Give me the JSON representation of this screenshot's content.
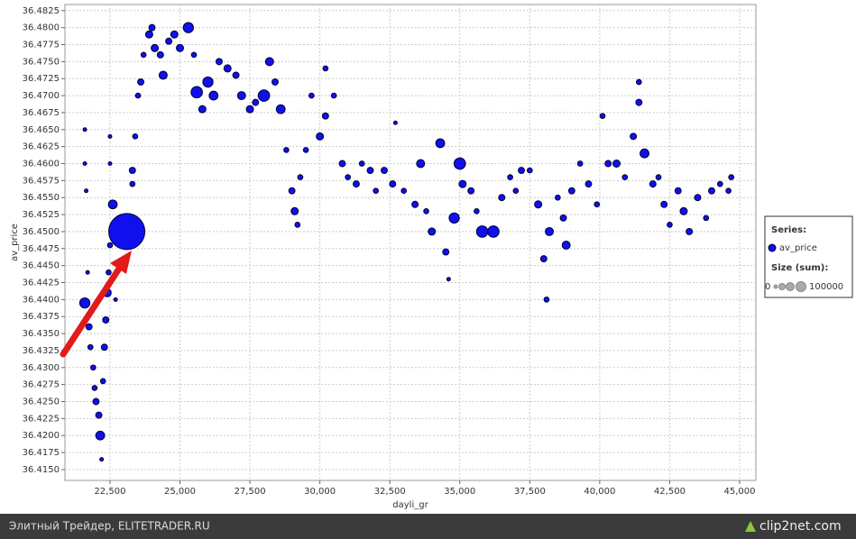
{
  "chart_data": {
    "type": "scatter",
    "x_label": "dayli_gr",
    "y_label": "av_price",
    "xlim": [
      20890,
      45580
    ],
    "ylim": [
      36.4134,
      36.4834
    ],
    "xticks": [
      {
        "value": 22500,
        "label": "22,500"
      },
      {
        "value": 25000,
        "label": "25,000"
      },
      {
        "value": 27500,
        "label": "27,500"
      },
      {
        "value": 30000,
        "label": "30,000"
      },
      {
        "value": 32500,
        "label": "32,500"
      },
      {
        "value": 35000,
        "label": "35,000"
      },
      {
        "value": 37500,
        "label": "37,500"
      },
      {
        "value": 40000,
        "label": "40,000"
      },
      {
        "value": 42500,
        "label": "42,500"
      },
      {
        "value": 45000,
        "label": "45,000"
      }
    ],
    "yticks": [
      {
        "value": 36.415,
        "label": "36.4150"
      },
      {
        "value": 36.4175,
        "label": "36.4175"
      },
      {
        "value": 36.42,
        "label": "36.4200"
      },
      {
        "value": 36.4225,
        "label": "36.4225"
      },
      {
        "value": 36.425,
        "label": "36.4250"
      },
      {
        "value": 36.4275,
        "label": "36.4275"
      },
      {
        "value": 36.43,
        "label": "36.4300"
      },
      {
        "value": 36.4325,
        "label": "36.4325"
      },
      {
        "value": 36.435,
        "label": "36.4350"
      },
      {
        "value": 36.4375,
        "label": "36.4375"
      },
      {
        "value": 36.44,
        "label": "36.4400"
      },
      {
        "value": 36.4425,
        "label": "36.4425"
      },
      {
        "value": 36.445,
        "label": "36.4450"
      },
      {
        "value": 36.4475,
        "label": "36.4475"
      },
      {
        "value": 36.45,
        "label": "36.4500"
      },
      {
        "value": 36.4525,
        "label": "36.4525"
      },
      {
        "value": 36.455,
        "label": "36.4550"
      },
      {
        "value": 36.4575,
        "label": "36.4575"
      },
      {
        "value": 36.46,
        "label": "36.4600"
      },
      {
        "value": 36.4625,
        "label": "36.4625"
      },
      {
        "value": 36.465,
        "label": "36.4650"
      },
      {
        "value": 36.4675,
        "label": "36.4675"
      },
      {
        "value": 36.47,
        "label": "36.4700"
      },
      {
        "value": 36.4725,
        "label": "36.4725"
      },
      {
        "value": 36.475,
        "label": "36.4750"
      },
      {
        "value": 36.4775,
        "label": "36.4775"
      },
      {
        "value": 36.48,
        "label": "36.4800"
      },
      {
        "value": 36.4825,
        "label": "36.4825"
      }
    ],
    "grid": true,
    "legend": {
      "title": "Series:",
      "size_title": "Size (sum):",
      "size_min": 0,
      "size_max": 100000
    },
    "series": [
      {
        "name": "av_price",
        "color": "#1010ee",
        "x": [
          21600,
          21600,
          21650,
          21700,
          21600,
          21750,
          21800,
          21900,
          21950,
          22000,
          22100,
          22150,
          22200,
          22250,
          22300,
          22350,
          22400,
          22450,
          22500,
          22600,
          22500,
          22500,
          22700,
          23100,
          23300,
          23300,
          23400,
          23500,
          23600,
          23700,
          23900,
          24000,
          24100,
          24300,
          24400,
          24600,
          24800,
          25000,
          25300,
          25500,
          25600,
          25800,
          26000,
          26200,
          26400,
          26700,
          27000,
          27200,
          27500,
          27700,
          28000,
          28200,
          28400,
          28600,
          28800,
          29000,
          29200,
          29100,
          29300,
          29500,
          29700,
          30000,
          30200,
          30200,
          30500,
          30800,
          31000,
          31300,
          31500,
          31800,
          32000,
          32300,
          32600,
          32700,
          33000,
          33400,
          33600,
          33800,
          34000,
          34300,
          34500,
          34600,
          34800,
          35000,
          35100,
          35400,
          35600,
          35800,
          36200,
          36500,
          36800,
          37000,
          37200,
          37500,
          37800,
          38000,
          38100,
          38200,
          38500,
          38700,
          38800,
          39000,
          39300,
          39600,
          39900,
          40100,
          40300,
          40600,
          40900,
          41200,
          41400,
          41400,
          41600,
          41900,
          42100,
          42300,
          42500,
          42800,
          43000,
          43200,
          43500,
          43800,
          44000,
          44300,
          44600,
          44700
        ],
        "values": [
          36.465,
          36.46,
          36.456,
          36.444,
          36.4395,
          36.436,
          36.433,
          36.43,
          36.427,
          36.425,
          36.423,
          36.42,
          36.4165,
          36.428,
          36.433,
          36.437,
          36.441,
          36.444,
          36.448,
          36.454,
          36.46,
          36.464,
          36.44,
          36.45,
          36.457,
          36.459,
          36.464,
          36.47,
          36.472,
          36.476,
          36.479,
          36.48,
          36.477,
          36.476,
          36.473,
          36.478,
          36.479,
          36.477,
          36.48,
          36.476,
          36.4705,
          36.468,
          36.472,
          36.47,
          36.475,
          36.474,
          36.473,
          36.47,
          36.468,
          36.469,
          36.47,
          36.475,
          36.472,
          36.468,
          36.462,
          36.456,
          36.451,
          36.453,
          36.458,
          36.462,
          36.47,
          36.464,
          36.474,
          36.467,
          36.47,
          36.46,
          36.458,
          36.457,
          36.46,
          36.459,
          36.456,
          36.459,
          36.457,
          36.466,
          36.456,
          36.454,
          36.46,
          36.453,
          36.45,
          36.463,
          36.447,
          36.443,
          36.452,
          36.46,
          36.457,
          36.456,
          36.453,
          36.45,
          36.45,
          36.455,
          36.458,
          36.456,
          36.459,
          36.459,
          36.454,
          36.446,
          36.44,
          36.45,
          36.455,
          36.452,
          36.448,
          36.456,
          36.46,
          36.457,
          36.454,
          36.467,
          36.46,
          36.46,
          36.458,
          36.464,
          36.472,
          36.469,
          36.4615,
          36.457,
          36.458,
          36.454,
          36.451,
          36.456,
          36.453,
          36.45,
          36.455,
          36.452,
          36.456,
          36.457,
          36.456,
          36.458
        ],
        "sizes": [
          1000,
          1000,
          1000,
          1000,
          8000,
          3000,
          2000,
          2000,
          2000,
          3000,
          3000,
          6000,
          1000,
          2000,
          3000,
          3000,
          5000,
          2000,
          2000,
          6000,
          1000,
          1000,
          1000,
          100000,
          2000,
          3000,
          2000,
          2000,
          3000,
          2000,
          4000,
          3000,
          4000,
          3000,
          5000,
          3000,
          4000,
          4000,
          8000,
          2000,
          10000,
          4000,
          8000,
          6000,
          3000,
          4000,
          3000,
          5000,
          4000,
          3000,
          10000,
          5000,
          3000,
          6000,
          2000,
          3000,
          2000,
          4000,
          2000,
          2000,
          2000,
          4000,
          2000,
          3000,
          2000,
          3000,
          2000,
          3000,
          2000,
          3000,
          2000,
          3000,
          3000,
          1000,
          2000,
          3000,
          5000,
          2000,
          4000,
          6000,
          3000,
          1000,
          8000,
          10000,
          4000,
          3000,
          2000,
          10000,
          10000,
          3000,
          2000,
          2000,
          3000,
          2000,
          4000,
          3000,
          2000,
          5000,
          2000,
          3000,
          5000,
          3000,
          2000,
          3000,
          2000,
          2000,
          3000,
          4000,
          2000,
          3000,
          2000,
          3000,
          6000,
          3000,
          2000,
          3000,
          2000,
          3000,
          4000,
          3000,
          3000,
          2000,
          3000,
          2000,
          2000,
          2000
        ]
      }
    ]
  },
  "footer": {
    "left": "Элитный Трейдер, ELITETRADER.RU",
    "right": "clip2net.com"
  }
}
